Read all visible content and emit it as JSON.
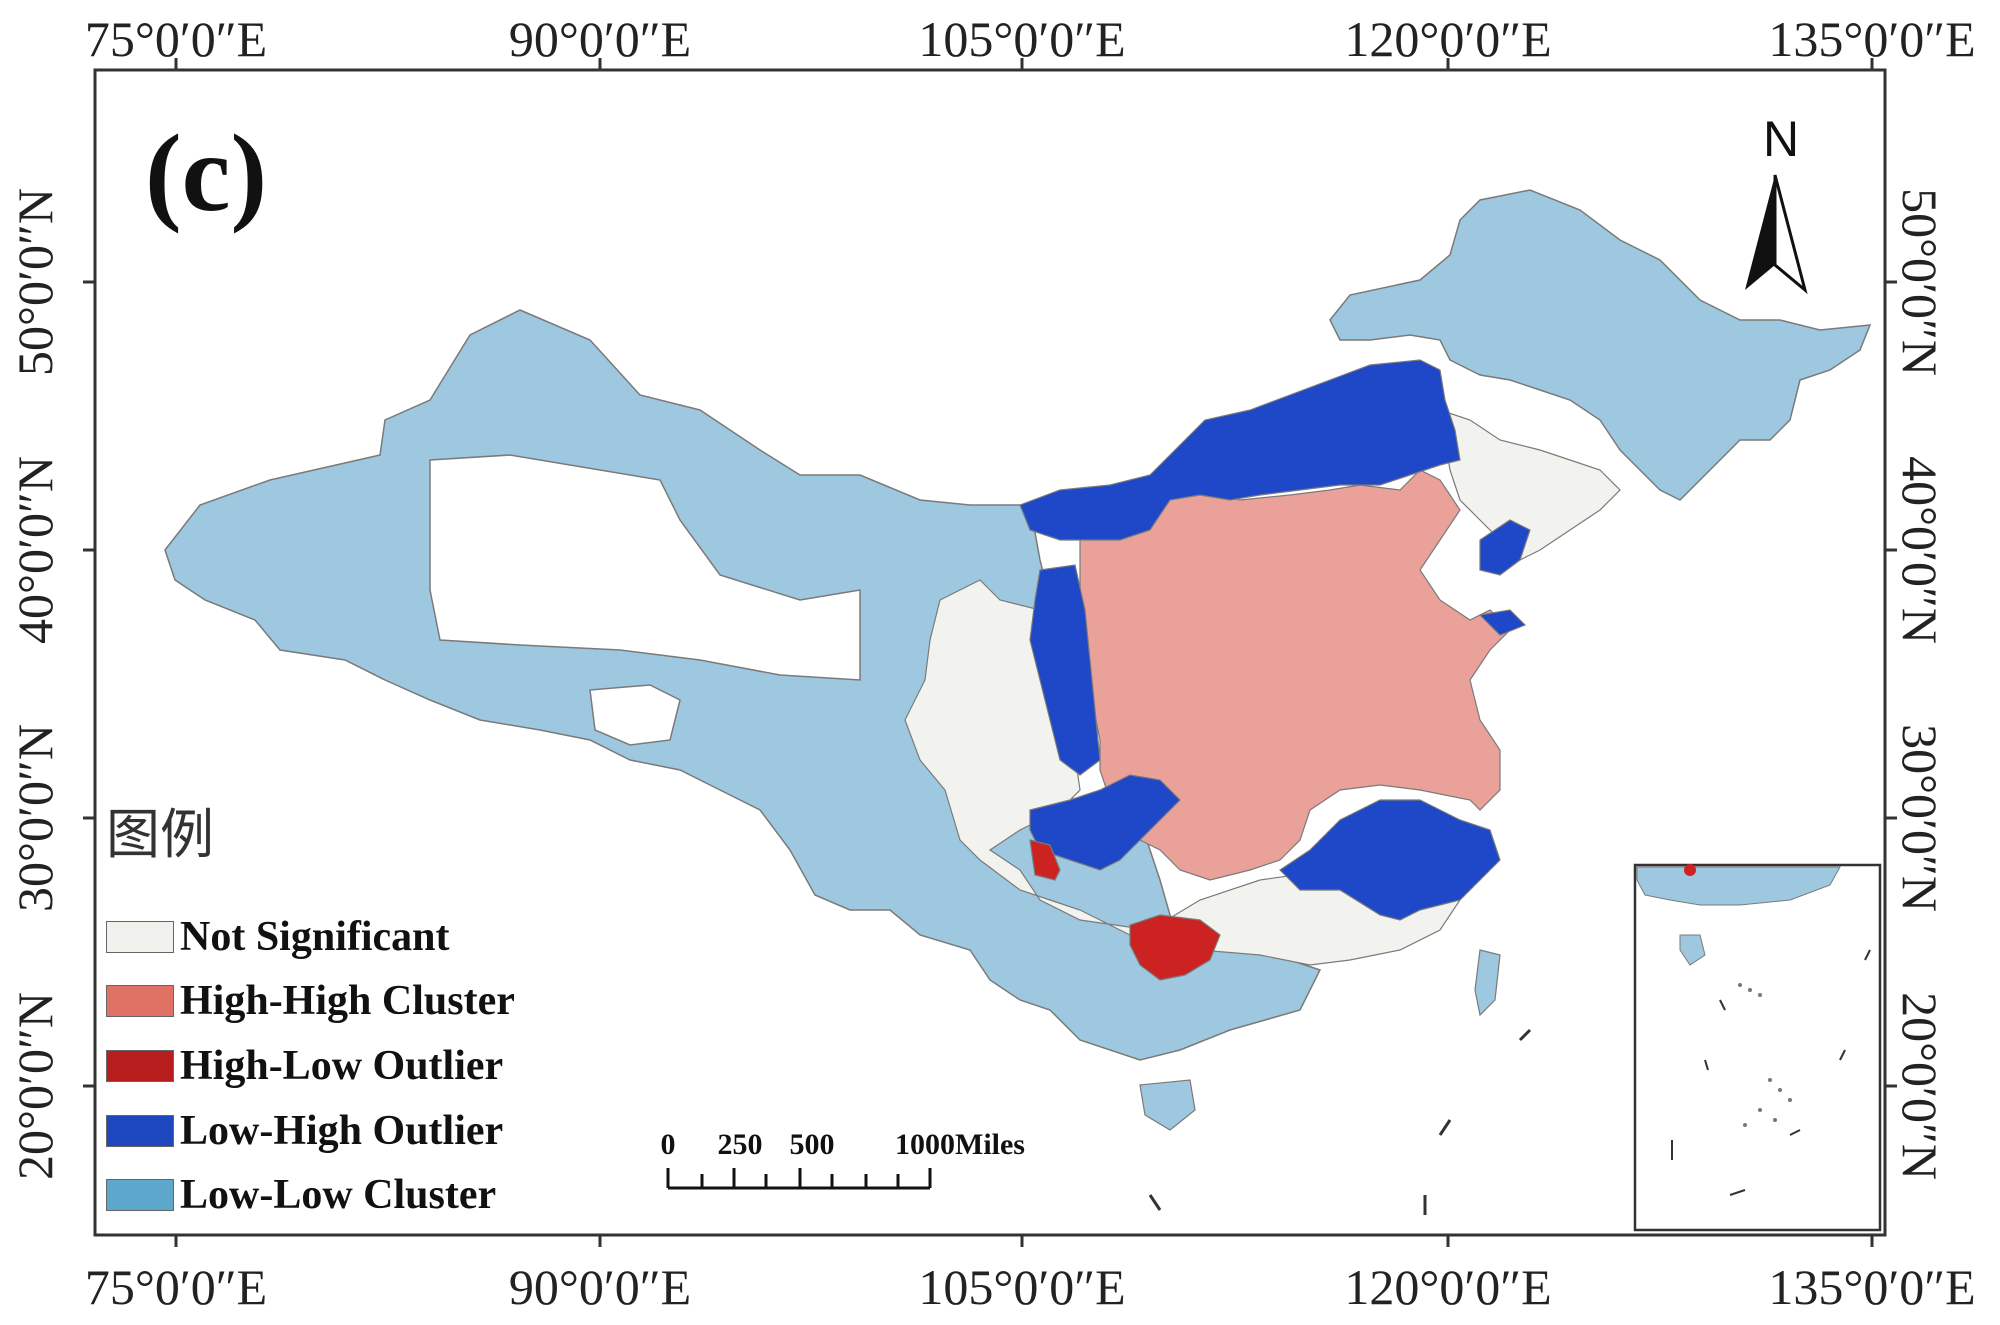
{
  "panel_label": "(c)",
  "north_arrow": {
    "label": "N",
    "icon": "north-arrow-icon"
  },
  "axes": {
    "longitude_ticks": [
      "75°0′0″E",
      "90°0′0″E",
      "105°0′0″E",
      "120°0′0″E",
      "135°0′0″E"
    ],
    "latitude_ticks": [
      "50°0′0″N",
      "40°0′0″N",
      "30°0′0″N",
      "20°0′0″N"
    ]
  },
  "legend": {
    "title": "图例",
    "items": [
      {
        "label": "Not Significant",
        "color": "#f0f1ec"
      },
      {
        "label": "High-High Cluster",
        "color": "#e07265"
      },
      {
        "label": "High-Low Outlier",
        "color": "#b81e1e"
      },
      {
        "label": "Low-High Outlier",
        "color": "#1c47bf"
      },
      {
        "label": "Low-Low Cluster",
        "color": "#5da6cc"
      }
    ]
  },
  "map_colors": {
    "not_significant": "#f2f2ee",
    "high_high": "#e9a19a",
    "high_low": "#cc2222",
    "low_high": "#1e48c8",
    "low_low": "#9ec8df",
    "border": "#7a7a7a"
  },
  "scale_bar": {
    "labels": [
      "0",
      "250",
      "500",
      "1000Miles"
    ]
  }
}
